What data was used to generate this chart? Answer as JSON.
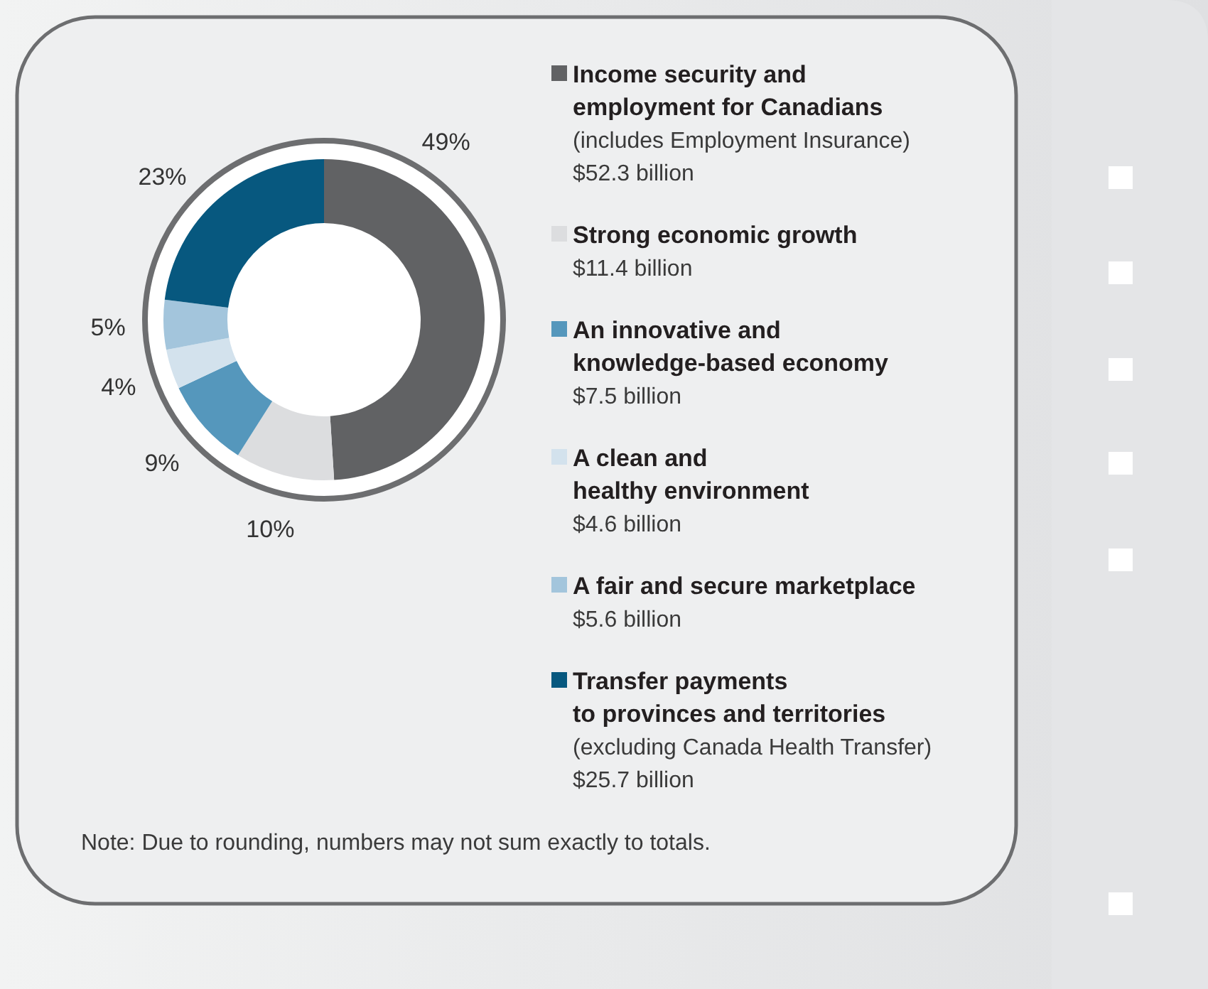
{
  "chart_data": {
    "type": "donut",
    "categories": [
      "Income security and\nemployment for Canadians",
      "Strong economic growth",
      "An innovative and\nknowledge-based economy",
      "A clean and\nhealthy environment",
      "A fair and secure marketplace",
      "Transfer payments\nto provinces and territories"
    ],
    "values": [
      49,
      10,
      9,
      4,
      5,
      23
    ],
    "value_labels": [
      "49%",
      "10%",
      "9%",
      "4%",
      "5%",
      "23%"
    ],
    "colors": [
      "#616264",
      "#dcdddf",
      "#5597bc",
      "#d3e2ed",
      "#a3c5dc",
      "#07587f"
    ],
    "legend": "right",
    "annotations": [
      {
        "text": "(includes Employment Insurance)\n$52.3 billion",
        "x": "Income security and\nemployment for Canadians"
      },
      {
        "text": "$11.4 billion",
        "x": "Strong economic growth"
      },
      {
        "text": "$7.5 billion",
        "x": "An innovative and\nknowledge-based economy"
      },
      {
        "text": "$4.6 billion",
        "x": "A clean and\nhealthy environment"
      },
      {
        "text": "$5.6 billion",
        "x": "A fair and secure marketplace"
      },
      {
        "text": "(excluding Canada Health Transfer)\n$25.7 billion",
        "x": "Transfer payments\nto provinces and territories"
      },
      "Note: Due to rounding, numbers may not sum exactly to totals."
    ]
  }
}
